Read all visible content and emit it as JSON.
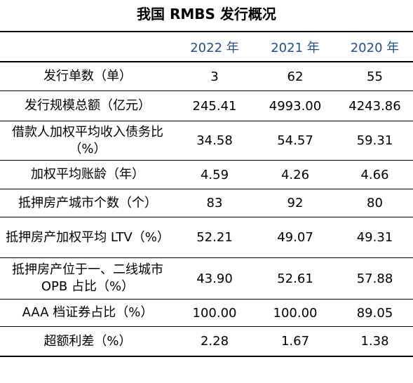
{
  "title": "我国 RMBS 发行概况",
  "columns": [
    "",
    "2022 年",
    "2021 年",
    "2020 年"
  ],
  "rows": [
    {
      "label": "发行单数（单）",
      "values": [
        "3",
        "62",
        "55"
      ]
    },
    {
      "label": "发行规模总额（亿元）",
      "values": [
        "245.41",
        "4993.00",
        "4243.86"
      ]
    },
    {
      "label": "借款人加权平均收入债务比（%）",
      "values": [
        "34.58",
        "54.57",
        "59.31"
      ]
    },
    {
      "label": "加权平均账龄（年）",
      "values": [
        "4.59",
        "4.26",
        "4.66"
      ]
    },
    {
      "label": "抵押房产城市个数（个）",
      "values": [
        "83",
        "92",
        "80"
      ]
    },
    {
      "label": "抵押房产加权平均 LTV（%）",
      "values": [
        "52.21",
        "49.07",
        "49.31"
      ]
    },
    {
      "label": "抵押房产位于一、二线城市 OPB 占比（%）",
      "values": [
        "43.90",
        "52.61",
        "57.88"
      ]
    },
    {
      "label": "AAA 档证券占比（%）",
      "values": [
        "100.00",
        "100.00",
        "89.05"
      ]
    },
    {
      "label": "超额利差（%）",
      "values": [
        "2.28",
        "1.67",
        "1.38"
      ]
    }
  ],
  "colors": {
    "header_text": "#1f4e96",
    "rule": "#000000"
  }
}
